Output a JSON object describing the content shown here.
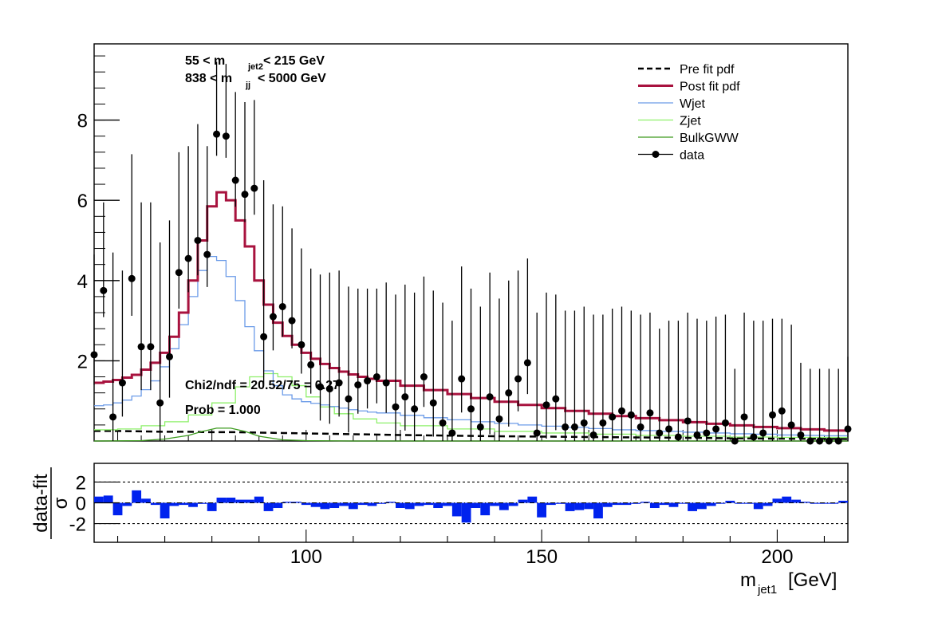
{
  "chart_data": [
    {
      "type": "line",
      "panel": "main",
      "xlim": [
        55,
        215
      ],
      "ylim": [
        0,
        9.9
      ],
      "yticks": [
        2,
        4,
        6,
        8
      ],
      "xticks": [
        60,
        80,
        100,
        120,
        140,
        160,
        180,
        200
      ],
      "annotations": {
        "cut1": "55 < m",
        "cut1_sub": "jet2",
        "cut1_tail": "< 215 GeV",
        "cut2": "838 < m",
        "cut2_sub": "jj",
        "cut2_tail": "< 5000 GeV",
        "chi2": "Chi2/ndf = 20.52/75 = 0.27",
        "prob": "Prob = 1.000"
      },
      "legend": [
        {
          "label": "Pre fit pdf",
          "style": "dashed",
          "color": "#000000"
        },
        {
          "label": "Post fit pdf",
          "style": "thick",
          "color": "#a8123e"
        },
        {
          "label": "Wjet",
          "style": "line",
          "color": "#6b9be8"
        },
        {
          "label": "Zjet",
          "style": "line",
          "color": "#8ef06a"
        },
        {
          "label": "BulkGWW",
          "style": "line",
          "color": "#3d9b1f"
        },
        {
          "label": "data",
          "style": "marker",
          "color": "#000000"
        }
      ],
      "legend_position": "top-right",
      "series": [
        {
          "name": "Post fit pdf",
          "color": "#a8123e",
          "x": [
            55,
            57,
            59,
            61,
            63,
            65,
            67,
            69,
            71,
            73,
            75,
            77,
            79,
            81,
            83,
            85,
            87,
            89,
            91,
            93,
            95,
            97,
            99,
            101,
            103,
            105,
            107,
            109,
            111,
            113,
            115,
            120,
            125,
            130,
            135,
            140,
            145,
            150,
            155,
            160,
            165,
            170,
            175,
            180,
            185,
            190,
            195,
            200,
            205,
            210,
            215
          ],
          "y": [
            1.45,
            1.48,
            1.52,
            1.58,
            1.65,
            1.78,
            1.95,
            2.2,
            2.6,
            3.2,
            4.0,
            5.0,
            5.85,
            6.2,
            6.0,
            5.5,
            4.85,
            4.0,
            3.4,
            2.95,
            2.62,
            2.4,
            2.2,
            2.05,
            1.92,
            1.82,
            1.73,
            1.66,
            1.6,
            1.55,
            1.5,
            1.38,
            1.27,
            1.17,
            1.07,
            0.98,
            0.9,
            0.82,
            0.75,
            0.68,
            0.62,
            0.57,
            0.52,
            0.47,
            0.43,
            0.39,
            0.35,
            0.32,
            0.29,
            0.26,
            0.24
          ]
        },
        {
          "name": "Wjet",
          "color": "#6b9be8",
          "x": [
            55,
            57,
            59,
            61,
            63,
            65,
            67,
            69,
            71,
            73,
            75,
            77,
            79,
            81,
            83,
            85,
            87,
            89,
            91,
            93,
            95,
            97,
            99,
            101,
            103,
            105,
            107,
            109,
            111,
            113,
            115,
            120,
            125,
            130,
            135,
            140,
            145,
            150,
            155,
            160,
            165,
            170,
            175,
            180,
            185,
            190,
            195,
            200,
            205,
            210,
            215
          ],
          "y": [
            0.88,
            0.9,
            0.95,
            1.02,
            1.12,
            1.28,
            1.5,
            1.85,
            2.3,
            2.9,
            3.6,
            4.25,
            4.6,
            4.5,
            4.1,
            3.5,
            2.85,
            2.25,
            1.75,
            1.38,
            1.15,
            1.05,
            0.98,
            0.94,
            0.9,
            0.86,
            0.82,
            0.78,
            0.75,
            0.72,
            0.7,
            0.64,
            0.58,
            0.53,
            0.48,
            0.44,
            0.4,
            0.37,
            0.34,
            0.31,
            0.28,
            0.26,
            0.24,
            0.22,
            0.2,
            0.18,
            0.17,
            0.15,
            0.14,
            0.13,
            0.12
          ]
        },
        {
          "name": "Zjet",
          "color": "#8ef06a",
          "x": [
            55,
            60,
            65,
            70,
            75,
            80,
            85,
            88,
            91,
            94,
            97,
            100,
            103,
            106,
            110,
            115,
            120,
            130,
            140,
            150,
            160,
            170,
            180,
            190,
            200,
            215
          ],
          "y": [
            0.28,
            0.3,
            0.38,
            0.48,
            0.65,
            0.95,
            1.35,
            1.6,
            1.68,
            1.6,
            1.38,
            1.1,
            0.85,
            0.68,
            0.55,
            0.45,
            0.38,
            0.3,
            0.24,
            0.2,
            0.17,
            0.14,
            0.12,
            0.1,
            0.09,
            0.08
          ]
        },
        {
          "name": "BulkGWW",
          "color": "#3d9b1f",
          "x": [
            55,
            65,
            70,
            75,
            78,
            81,
            84,
            87,
            90,
            95,
            100,
            110,
            130,
            160,
            215
          ],
          "y": [
            0.0,
            0.01,
            0.05,
            0.14,
            0.24,
            0.32,
            0.32,
            0.24,
            0.12,
            0.03,
            0.01,
            0.0,
            0.0,
            0.0,
            0.0
          ]
        },
        {
          "name": "Pre fit pdf",
          "color": "#000000",
          "x": [
            55,
            60,
            65,
            70,
            75,
            80,
            85,
            90,
            95,
            100,
            110,
            120,
            140,
            160,
            180,
            200,
            215
          ],
          "y": [
            0.25,
            0.25,
            0.24,
            0.23,
            0.23,
            0.22,
            0.22,
            0.21,
            0.2,
            0.19,
            0.17,
            0.15,
            0.12,
            0.1,
            0.08,
            0.06,
            0.05
          ]
        }
      ],
      "data": {
        "name": "data",
        "x": [
          55,
          57,
          59,
          61,
          63,
          65,
          67,
          69,
          71,
          73,
          75,
          77,
          79,
          81,
          83,
          85,
          87,
          89,
          91,
          93,
          95,
          97,
          99,
          101,
          103,
          105,
          107,
          109,
          111,
          113,
          115,
          117,
          119,
          121,
          123,
          125,
          127,
          129,
          131,
          133,
          135,
          137,
          139,
          141,
          143,
          145,
          147,
          149,
          151,
          153,
          155,
          157,
          159,
          161,
          163,
          165,
          167,
          169,
          171,
          173,
          175,
          177,
          179,
          181,
          183,
          185,
          187,
          189,
          191,
          193,
          195,
          197,
          199,
          201,
          203,
          205,
          207,
          209,
          211,
          213,
          215
        ],
        "y": [
          2.15,
          3.75,
          0.6,
          1.45,
          4.05,
          2.35,
          2.35,
          0.95,
          2.1,
          4.2,
          4.55,
          5.0,
          4.65,
          7.65,
          7.6,
          6.5,
          6.15,
          6.3,
          2.6,
          3.1,
          3.35,
          3.0,
          2.4,
          1.9,
          1.35,
          1.3,
          1.45,
          1.05,
          1.4,
          1.5,
          1.6,
          1.45,
          0.85,
          1.1,
          0.8,
          1.6,
          0.95,
          0.45,
          0.2,
          1.55,
          0.8,
          0.35,
          1.1,
          0.55,
          1.2,
          1.55,
          1.95,
          0.2,
          0.9,
          1.05,
          0.35,
          0.35,
          0.45,
          0.15,
          0.45,
          0.6,
          0.75,
          0.65,
          0.35,
          0.7,
          0.2,
          0.3,
          0.1,
          0.5,
          0.15,
          0.2,
          0.3,
          0.45,
          0.0,
          0.6,
          0.1,
          0.2,
          0.65,
          0.75,
          0.4,
          0.15,
          0.0,
          0.0,
          0.0,
          0.0,
          0.3
        ],
        "err": [
          2.5,
          2.2,
          4.1,
          2.8,
          3.1,
          3.6,
          3.6,
          4.0,
          3.4,
          3.0,
          2.8,
          2.9,
          2.7,
          1.8,
          1.8,
          2.2,
          2.3,
          2.2,
          3.9,
          2.8,
          2.5,
          2.3,
          2.4,
          2.4,
          2.8,
          2.9,
          2.8,
          2.8,
          2.4,
          2.3,
          2.2,
          2.5,
          2.8,
          2.8,
          2.9,
          2.5,
          2.8,
          3.0,
          2.8,
          2.8,
          3.0,
          3.0,
          3.1,
          3.0,
          2.8,
          2.7,
          2.6,
          3.0,
          2.8,
          2.6,
          2.9,
          2.9,
          2.9,
          3.0,
          2.7,
          2.7,
          2.6,
          2.6,
          2.8,
          2.5,
          2.6,
          2.7,
          2.9,
          2.7,
          2.9,
          2.8,
          2.8,
          2.7,
          1.8,
          2.6,
          2.9,
          2.8,
          2.4,
          2.3,
          2.5,
          1.8,
          1.8,
          1.8,
          1.8,
          1.8,
          1.8
        ]
      }
    },
    {
      "type": "bar",
      "panel": "pull",
      "xlim": [
        55,
        215
      ],
      "ylim": [
        -3.8,
        3.8
      ],
      "yticks": [
        -2,
        0,
        2
      ],
      "ylabel_top": "data-fit",
      "ylabel_bottom": "σ",
      "xlabel": "m",
      "xlabel_sub": "jet1",
      "xlabel_unit": "[GeV]",
      "xticks": [
        100,
        150,
        200
      ],
      "color": "#0022ee",
      "bin_width": 2,
      "x": [
        56,
        58,
        60,
        62,
        64,
        66,
        68,
        70,
        72,
        74,
        76,
        78,
        80,
        82,
        84,
        86,
        88,
        90,
        92,
        94,
        96,
        98,
        100,
        102,
        104,
        106,
        108,
        110,
        112,
        114,
        116,
        118,
        120,
        122,
        124,
        126,
        128,
        130,
        132,
        134,
        136,
        138,
        140,
        142,
        144,
        146,
        148,
        150,
        152,
        154,
        156,
        158,
        160,
        162,
        164,
        166,
        168,
        170,
        172,
        174,
        176,
        178,
        180,
        182,
        184,
        186,
        188,
        190,
        192,
        194,
        196,
        198,
        200,
        202,
        204,
        206,
        208,
        210,
        212,
        214
      ],
      "values": [
        0.6,
        0.7,
        -1.2,
        -0.3,
        1.2,
        0.4,
        -0.2,
        -1.5,
        -0.3,
        -0.2,
        -0.4,
        -0.1,
        -0.8,
        0.5,
        0.5,
        0.3,
        0.3,
        0.6,
        -0.8,
        -0.5,
        0.1,
        0.1,
        -0.2,
        -0.4,
        -0.6,
        -0.5,
        -0.3,
        -0.6,
        -0.2,
        -0.3,
        -0.1,
        0.1,
        -0.5,
        -0.6,
        -0.3,
        -0.2,
        -0.5,
        -0.3,
        -1.3,
        -1.9,
        -0.5,
        -1.2,
        -0.3,
        -0.7,
        -0.3,
        0.3,
        0.6,
        -1.4,
        -0.2,
        -0.1,
        -0.8,
        -0.7,
        -0.6,
        -1.5,
        -0.4,
        -0.2,
        -0.2,
        -0.1,
        0.1,
        -0.5,
        -0.2,
        -0.4,
        0.0,
        -0.8,
        -0.6,
        -0.3,
        0.0,
        0.2,
        0.0,
        0.0,
        -0.6,
        -0.3,
        0.4,
        0.6,
        0.3,
        0.1,
        0.0,
        0.0,
        0.0,
        0.2
      ]
    }
  ]
}
